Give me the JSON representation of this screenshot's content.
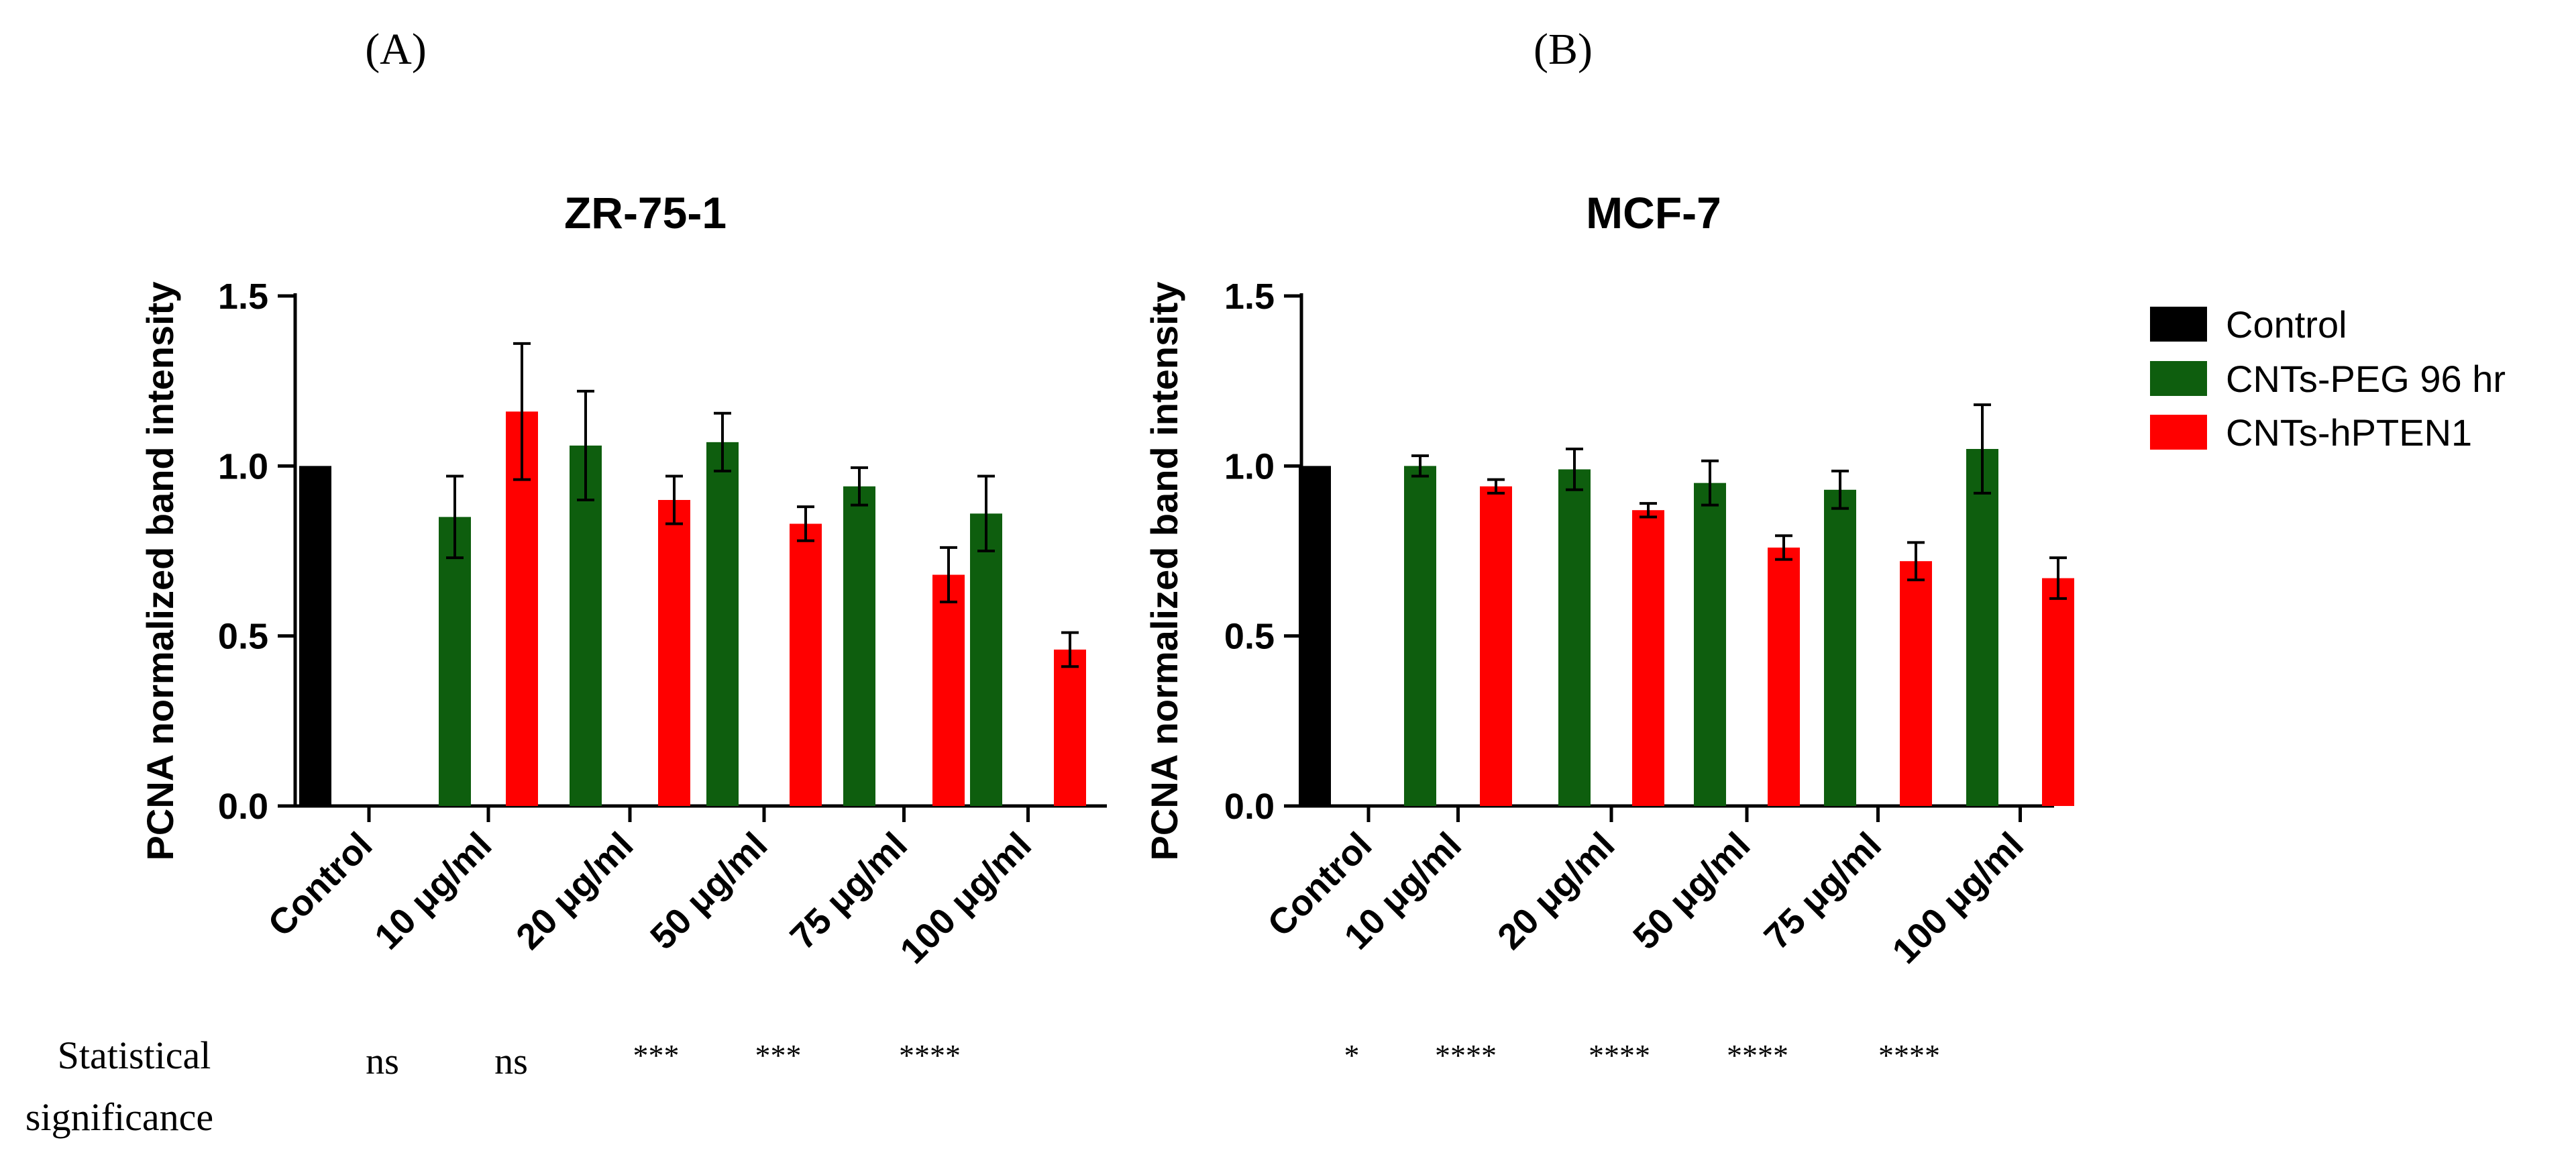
{
  "panel_labels": [
    "(A)",
    "(B)"
  ],
  "legend": [
    {
      "label": "Control",
      "color": "#000000"
    },
    {
      "label": "CNTs-PEG 96 hr",
      "color": "#0e5e0e"
    },
    {
      "label": "CNTs-hPTEN1",
      "color": "#ff0000"
    }
  ],
  "significance_label": [
    "Statistical",
    "significance"
  ],
  "chart_data": [
    {
      "type": "bar",
      "title": "ZR-75-1",
      "ylabel": "PCNA normalized band intensity",
      "xlabel": "",
      "ylim": [
        0,
        1.5
      ],
      "yticks": [
        0.0,
        0.5,
        1.0,
        1.5
      ],
      "ytick_labels": [
        "0.0",
        "0.5",
        "1.0",
        "1.5"
      ],
      "categories": [
        "Control",
        "10 μg/ml",
        "20 μg/ml",
        "50 μg/ml",
        "75 μg/ml",
        "100 μg/ml"
      ],
      "series": [
        {
          "name": "Control",
          "values": [
            1.0,
            null,
            null,
            null,
            null,
            null
          ],
          "errors": [
            0,
            null,
            null,
            null,
            null,
            null
          ]
        },
        {
          "name": "CNTs-PEG 96 hr",
          "values": [
            null,
            0.85,
            1.06,
            1.07,
            0.94,
            0.86
          ],
          "errors": [
            null,
            0.12,
            0.16,
            0.085,
            0.055,
            0.11
          ]
        },
        {
          "name": "CNTs-hPTEN1",
          "values": [
            null,
            1.16,
            0.9,
            0.83,
            0.68,
            0.46
          ],
          "errors": [
            null,
            0.2,
            0.07,
            0.05,
            0.08,
            0.05
          ]
        }
      ],
      "significance": [
        "ns",
        "ns",
        "***",
        "***",
        "****"
      ]
    },
    {
      "type": "bar",
      "title": "MCF-7",
      "ylabel": "PCNA normalized band intensity",
      "xlabel": "",
      "ylim": [
        0,
        1.5
      ],
      "yticks": [
        0.0,
        0.5,
        1.0,
        1.5
      ],
      "ytick_labels": [
        "0.0",
        "0.5",
        "1.0",
        "1.5"
      ],
      "categories": [
        "Control",
        "10 μg/ml",
        "20 μg/ml",
        "50 μg/ml",
        "75 μg/ml",
        "100 μg/ml"
      ],
      "series": [
        {
          "name": "Control",
          "values": [
            1.0,
            null,
            null,
            null,
            null,
            null
          ],
          "errors": [
            0,
            null,
            null,
            null,
            null,
            null
          ]
        },
        {
          "name": "CNTs-PEG 96 hr",
          "values": [
            null,
            1.0,
            0.99,
            0.95,
            0.93,
            1.05
          ],
          "errors": [
            null,
            0.03,
            0.06,
            0.065,
            0.055,
            0.13
          ]
        },
        {
          "name": "CNTs-hPTEN1",
          "values": [
            null,
            0.94,
            0.87,
            0.76,
            0.72,
            0.67
          ],
          "errors": [
            null,
            0.02,
            0.02,
            0.035,
            0.055,
            0.06
          ]
        }
      ],
      "significance": [
        "*",
        "****",
        "****",
        "****",
        "****"
      ]
    }
  ]
}
